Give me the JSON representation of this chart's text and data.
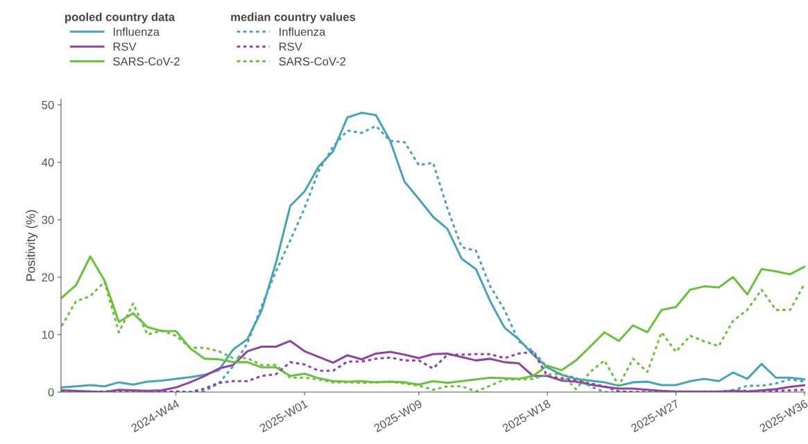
{
  "chart_data": {
    "type": "line",
    "ylabel": "Positivity (%)",
    "legend_title": [
      "pooled country data",
      "median country values"
    ],
    "categories": [
      null,
      null,
      null,
      null,
      null,
      null,
      null,
      null,
      "2024-W44",
      null,
      null,
      null,
      null,
      null,
      null,
      null,
      null,
      "2025-W01",
      null,
      null,
      null,
      null,
      null,
      null,
      null,
      "2025-W09",
      null,
      null,
      null,
      null,
      null,
      null,
      null,
      null,
      "2025-W18",
      null,
      null,
      null,
      null,
      null,
      null,
      null,
      null,
      "2025-W27",
      null,
      null,
      null,
      null,
      null,
      null,
      null,
      null,
      "2025-W36"
    ],
    "ylim": [
      0,
      51
    ],
    "yticks": [
      0,
      10,
      20,
      30,
      40,
      50
    ],
    "legend": "top left",
    "grid": false,
    "series": [
      {
        "name": "Influenza",
        "color": "#4aa3b5",
        "line_style": "solid",
        "values": [
          0.8,
          1.0,
          1.2,
          1.0,
          1.7,
          1.3,
          1.8,
          2.0,
          2.3,
          2.6,
          3.0,
          3.8,
          7.4,
          9.2,
          14.2,
          22.5,
          32.4,
          34.9,
          39.3,
          41.9,
          47.8,
          48.6,
          48.2,
          43.7,
          36.6,
          33.6,
          30.5,
          28.4,
          23.2,
          21.4,
          15.8,
          11.2,
          9.2,
          6.5,
          4.3,
          3.0,
          2.3,
          2.0,
          1.7,
          1.1,
          1.7,
          1.8,
          1.2,
          1.2,
          1.9,
          2.3,
          1.9,
          3.4,
          2.3,
          4.9,
          2.5,
          2.5,
          2.2
        ]
      },
      {
        "name": "RSV",
        "color": "#8e44a0",
        "line_style": "solid",
        "values": [
          0.3,
          0.2,
          0.1,
          0.0,
          0.4,
          0.3,
          0.2,
          0.3,
          0.8,
          1.7,
          2.8,
          4.1,
          4.7,
          7.1,
          7.9,
          7.9,
          8.9,
          7.1,
          6.1,
          5.1,
          6.4,
          5.7,
          6.7,
          7.0,
          6.5,
          5.9,
          6.6,
          6.7,
          6.1,
          5.5,
          5.8,
          5.2,
          5.0,
          2.8,
          2.8,
          2.0,
          1.8,
          1.3,
          0.9,
          0.6,
          0.6,
          0.4,
          0.2,
          0.1,
          0.1,
          0.1,
          0.1,
          0.2,
          0.1,
          0.3,
          0.5,
          0.9,
          1.2
        ]
      },
      {
        "name": "SARS-CoV-2",
        "color": "#6cbf3f",
        "line_style": "solid",
        "values": [
          16.4,
          18.6,
          23.6,
          19.4,
          12.2,
          13.7,
          11.3,
          10.6,
          10.6,
          7.6,
          5.8,
          5.7,
          5.2,
          5.2,
          4.3,
          4.3,
          2.8,
          3.2,
          2.4,
          1.9,
          1.8,
          1.9,
          1.7,
          1.8,
          1.7,
          1.3,
          1.9,
          1.6,
          1.9,
          2.2,
          2.5,
          2.4,
          2.3,
          2.8,
          4.6,
          3.8,
          5.5,
          7.9,
          10.4,
          8.9,
          11.6,
          10.4,
          14.3,
          14.8,
          17.8,
          18.4,
          18.2,
          20.0,
          17.0,
          21.4,
          21.0,
          20.5,
          21.8
        ]
      },
      {
        "name": "Influenza",
        "color": "#4aa3b5",
        "line_style": "dotted",
        "values": [
          0.0,
          0.0,
          0.0,
          0.0,
          0.0,
          0.0,
          0.0,
          0.0,
          0.0,
          0.0,
          0.2,
          1.5,
          4.5,
          8.5,
          15.0,
          21.0,
          26.4,
          32.0,
          38.5,
          42.7,
          45.5,
          45.1,
          46.3,
          43.7,
          43.5,
          39.5,
          39.9,
          32.0,
          25.2,
          24.6,
          18.4,
          14.3,
          8.8,
          7.1,
          4.3,
          3.0,
          2.5,
          1.0,
          0.0,
          0.0,
          0.0,
          0.0,
          0.0,
          0.0,
          0.0,
          0.0,
          0.0,
          0.3,
          1.1,
          1.1,
          1.5,
          2.2,
          1.8
        ]
      },
      {
        "name": "RSV",
        "color": "#8e44a0",
        "line_style": "dotted",
        "values": [
          0.3,
          0.1,
          0.1,
          0.1,
          0.2,
          0.2,
          0.1,
          0.1,
          0.1,
          0.0,
          0.6,
          1.6,
          1.9,
          1.9,
          2.8,
          3.1,
          5.2,
          4.8,
          3.7,
          3.7,
          5.3,
          5.3,
          5.8,
          6.0,
          5.5,
          5.5,
          4.1,
          6.5,
          6.5,
          6.6,
          6.6,
          5.9,
          6.7,
          7.0,
          2.8,
          2.4,
          2.0,
          1.5,
          1.0,
          0.1,
          0.0,
          0.0,
          0.0,
          0.0,
          0.0,
          0.0,
          0.0,
          0.3,
          0.2,
          0.1,
          0.2,
          0.3,
          0.4
        ]
      },
      {
        "name": "SARS-CoV-2",
        "color": "#6cbf3f",
        "line_style": "dotted",
        "values": [
          11.5,
          15.8,
          16.7,
          19.2,
          10.4,
          15.4,
          10.0,
          10.7,
          9.8,
          7.7,
          7.7,
          7.1,
          5.9,
          5.9,
          4.7,
          4.7,
          2.5,
          2.5,
          2.2,
          1.7,
          1.7,
          1.6,
          1.7,
          1.8,
          1.5,
          1.1,
          0.4,
          1.0,
          1.0,
          0.1,
          1.1,
          2.2,
          2.2,
          2.3,
          3.1,
          3.1,
          0.5,
          3.5,
          5.5,
          1.1,
          5.8,
          3.5,
          10.4,
          7.0,
          9.8,
          8.8,
          8.0,
          12.4,
          14.3,
          17.8,
          14.3,
          14.3,
          18.8
        ]
      }
    ]
  }
}
